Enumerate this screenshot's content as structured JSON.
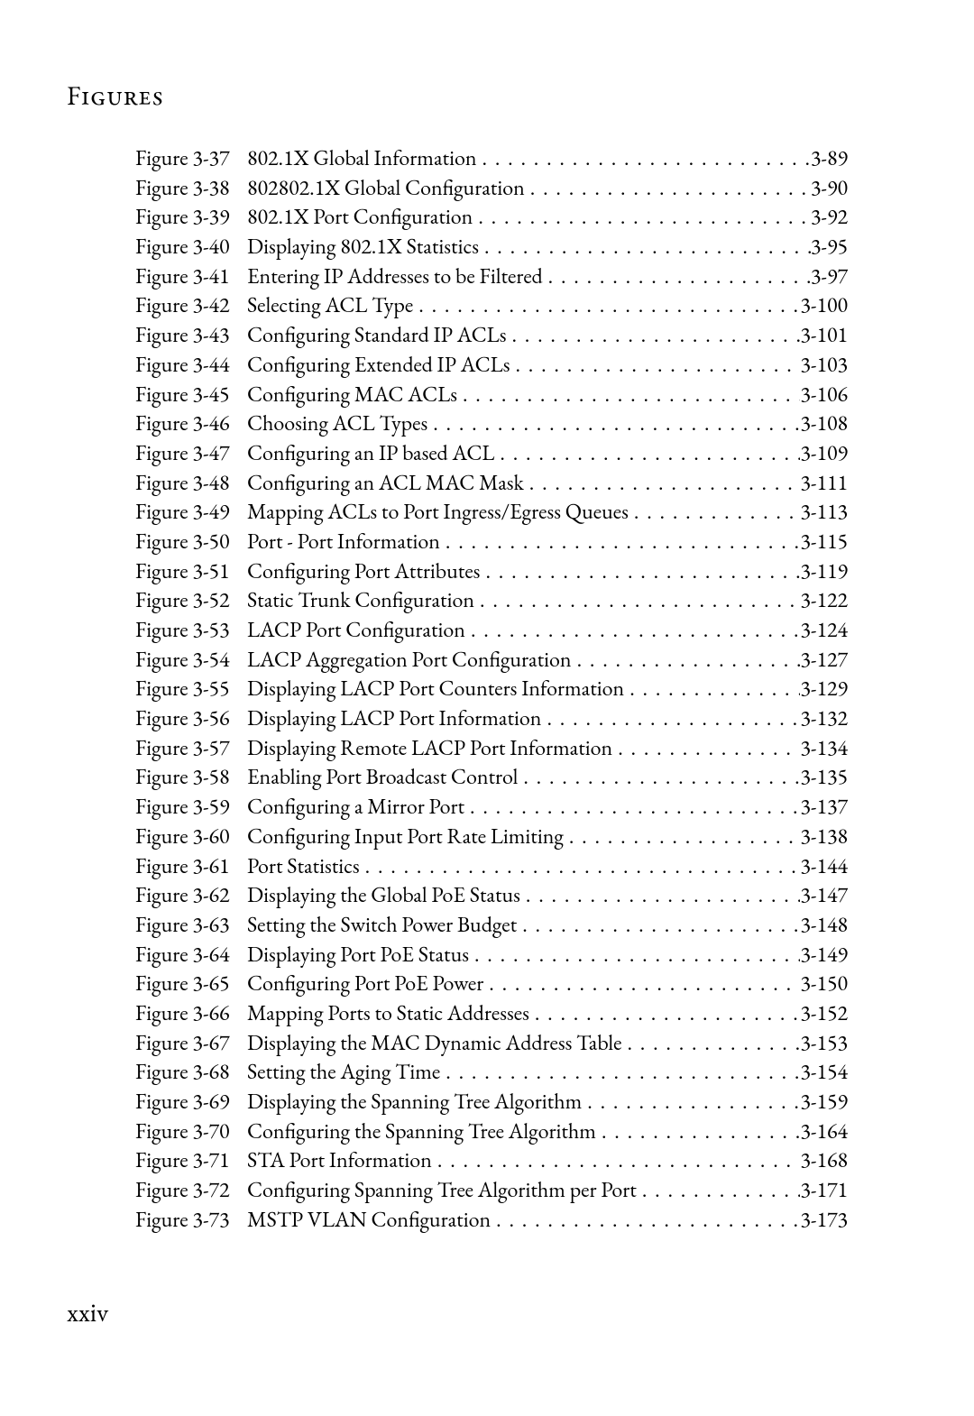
{
  "header": "Figures",
  "folio": "xxiv",
  "text_color": "#000000",
  "background_color": "#ffffff",
  "font_family": "Garamond",
  "body_fontsize_pt": 18,
  "header_fontsize_pt": 22,
  "entries": [
    {
      "label": "Figure 3-37",
      "title": "802.1X Global Information",
      "page": "3-89"
    },
    {
      "label": "Figure 3-38",
      "title": "802802.1X Global Configuration",
      "page": "3-90"
    },
    {
      "label": "Figure 3-39",
      "title": "802.1X Port Configuration",
      "page": "3-92"
    },
    {
      "label": "Figure 3-40",
      "title": "Displaying 802.1X Statistics",
      "page": "3-95"
    },
    {
      "label": "Figure 3-41",
      "title": "Entering IP Addresses to be Filtered",
      "page": "3-97"
    },
    {
      "label": "Figure 3-42",
      "title": "Selecting ACL Type",
      "page": "3-100"
    },
    {
      "label": "Figure 3-43",
      "title": "Configuring Standard IP ACLs",
      "page": "3-101"
    },
    {
      "label": "Figure 3-44",
      "title": "Configuring Extended IP ACLs",
      "page": "3-103"
    },
    {
      "label": "Figure 3-45",
      "title": "Configuring MAC ACLs",
      "page": "3-106"
    },
    {
      "label": "Figure 3-46",
      "title": "Choosing ACL Types",
      "page": "3-108"
    },
    {
      "label": "Figure 3-47",
      "title": "Configuring an IP based ACL",
      "page": "3-109"
    },
    {
      "label": "Figure 3-48",
      "title": "Configuring an ACL MAC Mask",
      "page": "3-111"
    },
    {
      "label": "Figure 3-49",
      "title": "Mapping ACLs to Port Ingress/Egress Queues",
      "page": "3-113"
    },
    {
      "label": "Figure 3-50",
      "title": "Port - Port Information",
      "page": "3-115"
    },
    {
      "label": "Figure 3-51",
      "title": "Configuring Port Attributes",
      "page": "3-119"
    },
    {
      "label": "Figure 3-52",
      "title": "Static Trunk Configuration",
      "page": "3-122"
    },
    {
      "label": "Figure 3-53",
      "title": "LACP Port Configuration",
      "page": "3-124"
    },
    {
      "label": "Figure 3-54",
      "title": "LACP Aggregation Port Configuration",
      "page": "3-127"
    },
    {
      "label": "Figure 3-55",
      "title": "Displaying LACP Port Counters Information",
      "page": "3-129"
    },
    {
      "label": "Figure 3-56",
      "title": "Displaying LACP Port Information",
      "page": "3-132"
    },
    {
      "label": "Figure 3-57",
      "title": "Displaying Remote LACP Port Information",
      "page": "3-134"
    },
    {
      "label": "Figure 3-58",
      "title": "Enabling Port Broadcast Control",
      "page": "3-135"
    },
    {
      "label": "Figure 3-59",
      "title": "Configuring a Mirror Port",
      "page": "3-137"
    },
    {
      "label": "Figure 3-60",
      "title": "Configuring Input Port Rate Limiting",
      "page": "3-138"
    },
    {
      "label": "Figure 3-61",
      "title": "Port Statistics",
      "page": "3-144"
    },
    {
      "label": "Figure 3-62",
      "title": "Displaying the Global PoE Status",
      "page": "3-147"
    },
    {
      "label": "Figure 3-63",
      "title": "Setting the Switch Power Budget",
      "page": "3-148"
    },
    {
      "label": "Figure 3-64",
      "title": "Displaying Port PoE Status",
      "page": "3-149"
    },
    {
      "label": "Figure 3-65",
      "title": "Configuring Port PoE Power",
      "page": "3-150"
    },
    {
      "label": "Figure 3-66",
      "title": "Mapping Ports to Static Addresses",
      "page": "3-152"
    },
    {
      "label": "Figure 3-67",
      "title": "Displaying the MAC Dynamic Address Table",
      "page": "3-153"
    },
    {
      "label": "Figure 3-68",
      "title": "Setting the Aging Time",
      "page": "3-154"
    },
    {
      "label": "Figure 3-69",
      "title": "Displaying the Spanning Tree Algorithm",
      "page": "3-159"
    },
    {
      "label": "Figure 3-70",
      "title": "Configuring the Spanning Tree Algorithm",
      "page": "3-164"
    },
    {
      "label": "Figure 3-71",
      "title": "STA Port Information",
      "page": "3-168"
    },
    {
      "label": "Figure 3-72",
      "title": "Configuring Spanning Tree Algorithm per Port",
      "page": "3-171"
    },
    {
      "label": "Figure 3-73",
      "title": "MSTP VLAN Configuration",
      "page": "3-173"
    }
  ]
}
